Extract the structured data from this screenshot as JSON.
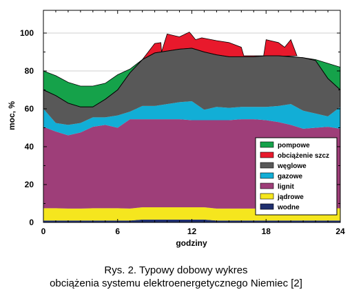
{
  "chart_data": {
    "type": "area",
    "xlabel": "godziny",
    "ylabel": "moc, %",
    "xlim": [
      0,
      24
    ],
    "ylim": [
      0,
      100
    ],
    "x_ticks": [
      "0",
      "6",
      "12",
      "18",
      "24"
    ],
    "y_ticks": [
      "0",
      "20",
      "40",
      "60",
      "80",
      "100"
    ],
    "grid": "horizontal",
    "legend_position": "bottom-right",
    "x": [
      0,
      1,
      2,
      3,
      4,
      5,
      6,
      7,
      8,
      9,
      10,
      11,
      12,
      13,
      14,
      15,
      16,
      17,
      18,
      19,
      20,
      21,
      22,
      23,
      24
    ],
    "series": [
      {
        "name": "wodne",
        "color": "#1f2f6e",
        "top": [
          1,
          1,
          1,
          1,
          1,
          1,
          1,
          1,
          1.5,
          1.5,
          1.5,
          1.5,
          1.5,
          1.5,
          1,
          1,
          1,
          1,
          1,
          1,
          1,
          1,
          1,
          1,
          1
        ]
      },
      {
        "name": "jądrowe",
        "color": "#f5e61e",
        "top": [
          7.5,
          7.5,
          7.3,
          7.3,
          7.5,
          7.5,
          7.5,
          7.3,
          8,
          8,
          8,
          8,
          8,
          8,
          7.3,
          7.3,
          7.3,
          7.3,
          7.3,
          7.3,
          7.3,
          7.3,
          7.3,
          7.3,
          7.5
        ]
      },
      {
        "name": "lignit",
        "color": "#9e3e79",
        "top": [
          50.5,
          48,
          46,
          47.5,
          50.5,
          51.5,
          50,
          54.5,
          54.5,
          54.5,
          54.5,
          54.5,
          54,
          54,
          54,
          54,
          54.5,
          54.5,
          54,
          53,
          51.5,
          49.5,
          50,
          50.5,
          49.5
        ]
      },
      {
        "name": "gazowe",
        "color": "#12aed6",
        "top": [
          60,
          52.5,
          51.5,
          52.5,
          55.5,
          55.5,
          56.5,
          58.5,
          61.5,
          61.5,
          62.5,
          63.5,
          64,
          59.5,
          61,
          60.5,
          61,
          61,
          61,
          61.5,
          62.5,
          59,
          57.5,
          56,
          61
        ]
      },
      {
        "name": "węglowe",
        "color": "#585858",
        "top": [
          70,
          67,
          63,
          61,
          61,
          65,
          70,
          79,
          86,
          89.5,
          90.5,
          91.5,
          92,
          90,
          88.5,
          87.5,
          87.5,
          87.5,
          88,
          88,
          87.5,
          87,
          85.5,
          76,
          70
        ]
      },
      {
        "name": "obciążenie szcz",
        "color": "#e8192c",
        "points": [
          [
            8,
            86
          ],
          [
            9,
            94.5
          ],
          [
            9.5,
            95
          ],
          [
            9.55,
            90
          ],
          [
            10,
            99.5
          ],
          [
            11,
            98
          ],
          [
            11.8,
            100.5
          ],
          [
            12,
            99
          ],
          [
            12.3,
            96.5
          ],
          [
            12.8,
            97.5
          ],
          [
            14,
            96
          ],
          [
            15,
            95
          ],
          [
            16,
            92.5
          ],
          [
            16.2,
            88
          ],
          [
            17.8,
            88
          ],
          [
            18,
            96.5
          ],
          [
            19,
            95
          ],
          [
            19.5,
            92.5
          ],
          [
            20,
            96.5
          ],
          [
            20.5,
            88
          ]
        ]
      },
      {
        "name": "pompowe",
        "color": "#15a24a",
        "top": [
          80,
          77.5,
          74,
          72,
          72,
          73.5,
          78,
          81,
          86,
          89.5,
          90.5,
          91.5,
          92,
          90,
          88.5,
          87.5,
          87.5,
          87.5,
          88,
          88,
          87.5,
          87,
          86,
          84,
          82
        ]
      }
    ],
    "legend": [
      "pompowe",
      "obciążenie szcz",
      "węglowe",
      "gazowe",
      "lignit",
      "jądrowe",
      "wodne"
    ]
  },
  "caption": {
    "line1": "Rys. 2. Typowy dobowy wykres",
    "line2": "obciążenia systemu elektroenergetycznego Niemiec [2]"
  }
}
